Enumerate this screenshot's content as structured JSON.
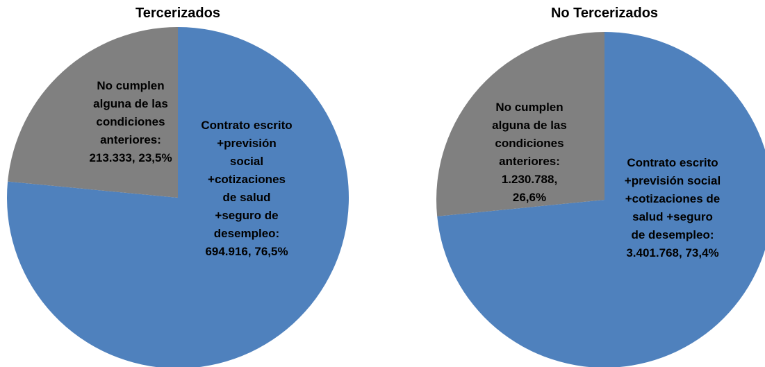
{
  "chart_data": [
    {
      "type": "pie",
      "title": "Tercerizados",
      "categories": [
        "Contrato escrito +previsión social +cotizaciones de salud +seguro de desempleo:",
        "No cumplen alguna de las condiciones anteriores:"
      ],
      "values": [
        694916,
        213333
      ],
      "value_labels": [
        "694.916,",
        "213.333,"
      ],
      "percent": [
        76.5,
        23.5
      ],
      "percent_labels": [
        "76,5%",
        "23,5%"
      ],
      "colors": [
        "#4f81bd",
        "#808080"
      ]
    },
    {
      "type": "pie",
      "title": "No Tercerizados",
      "categories": [
        "Contrato escrito +previsión social +cotizaciones de salud +seguro de desempleo:",
        "No cumplen alguna de las condiciones anteriores:"
      ],
      "values": [
        3401768,
        1230788
      ],
      "value_labels": [
        "3.401.768,",
        "1.230.788,"
      ],
      "percent": [
        73.4,
        26.6
      ],
      "percent_labels": [
        "73,4%",
        "26,6%"
      ],
      "colors": [
        "#4f81bd",
        "#808080"
      ]
    }
  ]
}
